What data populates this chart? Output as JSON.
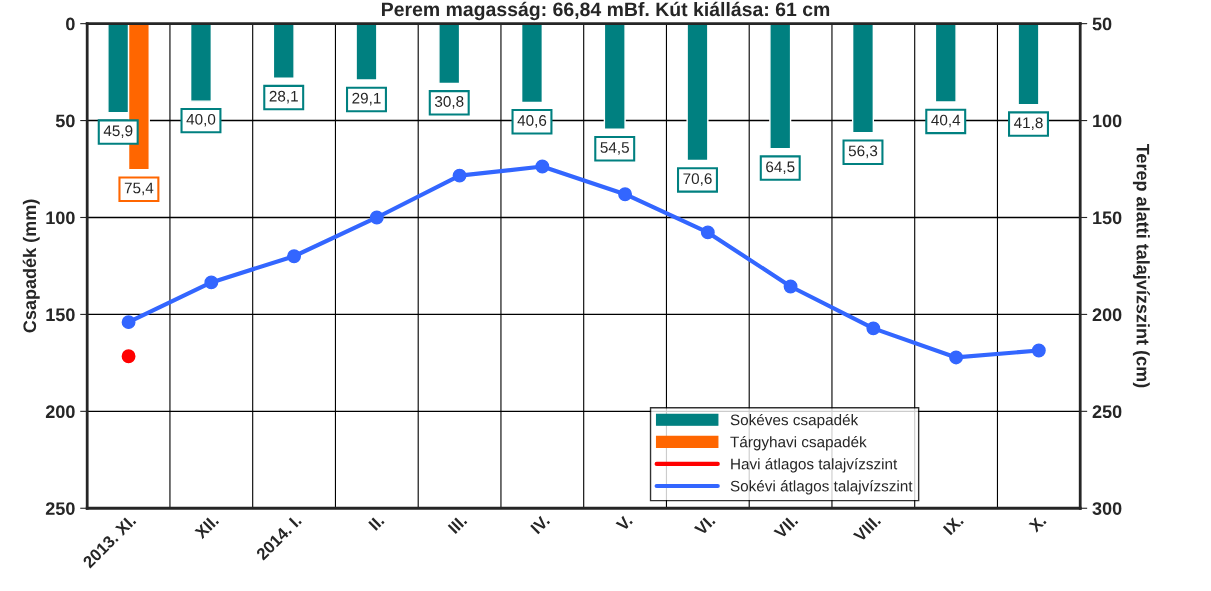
{
  "chart_data": {
    "type": "bar",
    "title": "Perem magasság: 66,84 mBf. Kút kiállása: 61 cm",
    "ylabel": "Csapadék (mm)",
    "y2label": "Terep alatti talajvízszint (cm)",
    "categories": [
      "2013. XI.",
      "XII.",
      "2014. I.",
      "II.",
      "III.",
      "IV.",
      "V.",
      "VI.",
      "VII.",
      "VIII.",
      "IX.",
      "X."
    ],
    "series": [
      {
        "name": "Sokéves csapadék",
        "color": "#008080",
        "values": [
          45.9,
          40.0,
          28.1,
          29.1,
          30.8,
          40.6,
          54.5,
          70.6,
          64.5,
          56.3,
          40.4,
          41.8
        ],
        "value_labels": [
          "45,9",
          "40,0",
          "28,1",
          "29,1",
          "30,8",
          "40,6",
          "54,5",
          "70,6",
          "64,5",
          "56,3",
          "40,4",
          "41,8"
        ]
      },
      {
        "name": "Tárgyhavi csapadék",
        "color": "#ff6600",
        "values": [
          75.4,
          null,
          null,
          null,
          null,
          null,
          null,
          null,
          null,
          null,
          null,
          null
        ],
        "value_labels": [
          "75,4",
          null,
          null,
          null,
          null,
          null,
          null,
          null,
          null,
          null,
          null,
          null
        ]
      },
      {
        "name": "Havi átlagos talajvízszint",
        "type": "line",
        "axis": "y2",
        "color": "#ff0000",
        "values": [
          221.6,
          null,
          null,
          null,
          null,
          null,
          null,
          null,
          null,
          null,
          null,
          null
        ]
      },
      {
        "name": "Sokévi átlagos talajvízszint",
        "type": "line",
        "axis": "y2",
        "color": "#3366ff",
        "values": [
          204,
          183.5,
          170,
          150,
          128.4,
          123.7,
          138,
          157.7,
          185.6,
          207.2,
          222.2,
          218.6
        ]
      }
    ],
    "ylim": [
      250,
      0
    ],
    "yticks": [
      0,
      50,
      100,
      150,
      200,
      250
    ],
    "y2lim": [
      300,
      50
    ],
    "y2ticks": [
      50,
      100,
      150,
      200,
      250,
      300
    ],
    "grid": true,
    "legend": "bottom right",
    "marker": "circle",
    "line_style": "solid"
  }
}
